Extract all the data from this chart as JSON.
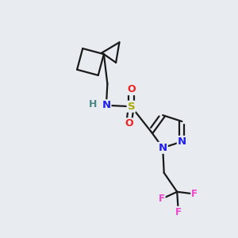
{
  "bg_color": "#e8ecf0",
  "bond_color": "#1a1a1a",
  "N_color": "#2020ee",
  "H_color": "#4a8888",
  "S_color": "#aaaa00",
  "O_color": "#ee2020",
  "F_color": "#ee44cc",
  "bond_width": 1.6,
  "font_size": 9.5,
  "fig_size": [
    3.0,
    3.0
  ],
  "dpi": 100,
  "xlim": [
    0,
    10
  ],
  "ylim": [
    0,
    10
  ]
}
